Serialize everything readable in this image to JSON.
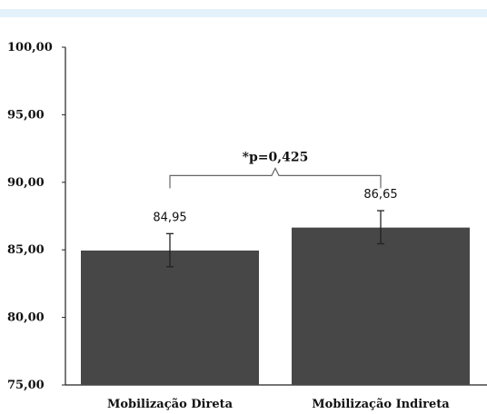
{
  "chart_data": {
    "type": "bar",
    "categories": [
      "Mobilização Direta",
      "Mobilização Indireta"
    ],
    "values": [
      84.95,
      86.65
    ],
    "data_labels": [
      "84,95",
      "86,65"
    ],
    "error_bars": [
      {
        "lower": 83.75,
        "upper": 86.2
      },
      {
        "lower": 85.45,
        "upper": 87.9
      }
    ],
    "ylim": [
      75,
      100
    ],
    "yticks": [
      75,
      80,
      85,
      90,
      95,
      100
    ],
    "ytick_labels": [
      "75,00",
      "80,00",
      "85,00",
      "90,00",
      "95,00",
      "100,00"
    ],
    "annotation": {
      "text": "*p=0,425",
      "bracket_y": 90.5
    },
    "bar_color": "#474747",
    "grid": false
  }
}
